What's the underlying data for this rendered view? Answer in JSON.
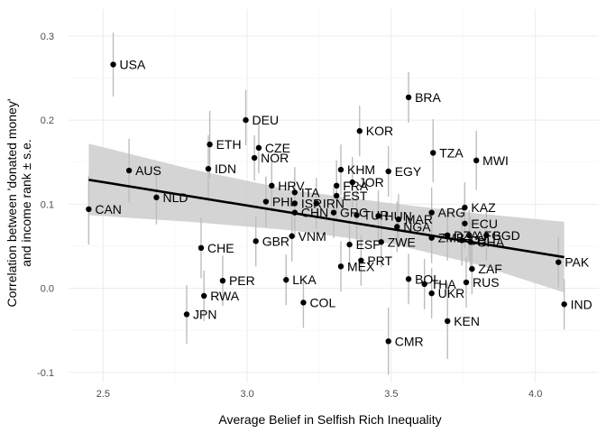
{
  "chart_data": {
    "type": "scatter",
    "title": "",
    "xlabel": "Average Belief in Selfish Rich Inequality",
    "ylabel_lines": [
      "Correlation between 'donated money'",
      "and income rank ± s.e."
    ],
    "xlim": [
      2.38,
      4.22
    ],
    "ylim": [
      -0.112,
      0.332
    ],
    "x_ticks": [
      2.5,
      3.0,
      3.5,
      4.0
    ],
    "x_tick_labels": [
      "2.5",
      "3.0",
      "3.5",
      "4.0"
    ],
    "y_ticks": [
      -0.1,
      0.0,
      0.1,
      0.2,
      0.3
    ],
    "y_tick_labels": [
      "-0.1",
      "0.0",
      "0.1",
      "0.2",
      "0.3"
    ],
    "grid": true,
    "point_color": "#000000",
    "errorbar_color": "#bdbdbd",
    "band_color": "#cccccc",
    "line_color": "#000000",
    "regression": {
      "x": [
        2.45,
        4.1
      ],
      "y": [
        0.129,
        0.037
      ]
    },
    "confidence_band": {
      "x": [
        2.45,
        2.8,
        3.15,
        3.5,
        3.8,
        4.1
      ],
      "upper": [
        0.172,
        0.142,
        0.117,
        0.101,
        0.089,
        0.079
      ],
      "lower": [
        0.087,
        0.079,
        0.069,
        0.053,
        0.028,
        -0.005
      ]
    },
    "points": [
      {
        "label": "USA",
        "x": 2.535,
        "y": 0.266,
        "lo": 0.228,
        "hi": 0.304
      },
      {
        "label": "BRA",
        "x": 3.56,
        "y": 0.227,
        "lo": 0.197,
        "hi": 0.257
      },
      {
        "label": "DEU",
        "x": 2.995,
        "y": 0.2,
        "lo": 0.17,
        "hi": 0.236
      },
      {
        "label": "KOR",
        "x": 3.39,
        "y": 0.187,
        "lo": 0.157,
        "hi": 0.217
      },
      {
        "label": "ETH",
        "x": 2.87,
        "y": 0.171,
        "lo": 0.131,
        "hi": 0.211
      },
      {
        "label": "CZE",
        "x": 3.04,
        "y": 0.167,
        "lo": 0.137,
        "hi": 0.197
      },
      {
        "label": "TZA",
        "x": 3.645,
        "y": 0.161,
        "lo": 0.126,
        "hi": 0.201
      },
      {
        "label": "NOR",
        "x": 3.025,
        "y": 0.155,
        "lo": 0.128,
        "hi": 0.182
      },
      {
        "label": "MWI",
        "x": 3.795,
        "y": 0.152,
        "lo": 0.117,
        "hi": 0.187
      },
      {
        "label": "IDN",
        "x": 2.865,
        "y": 0.142,
        "lo": 0.102,
        "hi": 0.182
      },
      {
        "label": "AUS",
        "x": 2.59,
        "y": 0.14,
        "lo": 0.102,
        "hi": 0.178
      },
      {
        "label": "KHM",
        "x": 3.325,
        "y": 0.141,
        "lo": 0.111,
        "hi": 0.171
      },
      {
        "label": "EGY",
        "x": 3.49,
        "y": 0.139,
        "lo": 0.109,
        "hi": 0.169
      },
      {
        "label": "JOR",
        "x": 3.365,
        "y": 0.126,
        "lo": 0.096,
        "hi": 0.156
      },
      {
        "label": "FRA",
        "x": 3.31,
        "y": 0.122,
        "lo": 0.092,
        "hi": 0.152
      },
      {
        "label": "HRV",
        "x": 3.085,
        "y": 0.122,
        "lo": 0.092,
        "hi": 0.152
      },
      {
        "label": "ITA",
        "x": 3.165,
        "y": 0.114,
        "lo": 0.084,
        "hi": 0.144
      },
      {
        "label": "EST",
        "x": 3.31,
        "y": 0.11,
        "lo": 0.08,
        "hi": 0.14
      },
      {
        "label": "NLD",
        "x": 2.685,
        "y": 0.108,
        "lo": 0.076,
        "hi": 0.14
      },
      {
        "label": "PHL",
        "x": 3.065,
        "y": 0.103,
        "lo": 0.073,
        "hi": 0.133
      },
      {
        "label": "ISR",
        "x": 3.165,
        "y": 0.101,
        "lo": 0.071,
        "hi": 0.131
      },
      {
        "label": "IRN",
        "x": 3.24,
        "y": 0.101,
        "lo": 0.071,
        "hi": 0.131
      },
      {
        "label": "KAZ",
        "x": 3.755,
        "y": 0.096,
        "lo": 0.066,
        "hi": 0.126
      },
      {
        "label": "CAN",
        "x": 2.45,
        "y": 0.094,
        "lo": 0.052,
        "hi": 0.134
      },
      {
        "label": "ARG",
        "x": 3.64,
        "y": 0.09,
        "lo": 0.06,
        "hi": 0.12
      },
      {
        "label": "GRC",
        "x": 3.3,
        "y": 0.09,
        "lo": 0.06,
        "hi": 0.12
      },
      {
        "label": "CHN",
        "x": 3.165,
        "y": 0.09,
        "lo": 0.06,
        "hi": 0.12
      },
      {
        "label": "TUR",
        "x": 3.38,
        "y": 0.087,
        "lo": 0.057,
        "hi": 0.117
      },
      {
        "label": "HUN",
        "x": 3.455,
        "y": 0.086,
        "lo": 0.056,
        "hi": 0.116
      },
      {
        "label": "MAR",
        "x": 3.525,
        "y": 0.082,
        "lo": 0.052,
        "hi": 0.112
      },
      {
        "label": "ECU",
        "x": 3.755,
        "y": 0.077,
        "lo": 0.047,
        "hi": 0.107
      },
      {
        "label": "NGA",
        "x": 3.52,
        "y": 0.073,
        "lo": 0.043,
        "hi": 0.103
      },
      {
        "label": "DZA",
        "x": 3.695,
        "y": 0.063,
        "lo": 0.033,
        "hi": 0.093
      },
      {
        "label": "AFG",
        "x": 3.77,
        "y": 0.063,
        "lo": 0.033,
        "hi": 0.093
      },
      {
        "label": "BGD",
        "x": 3.83,
        "y": 0.063,
        "lo": 0.033,
        "hi": 0.093
      },
      {
        "label": "VNM",
        "x": 3.155,
        "y": 0.062,
        "lo": 0.032,
        "hi": 0.092
      },
      {
        "label": "ZMB",
        "x": 3.64,
        "y": 0.06,
        "lo": 0.03,
        "hi": 0.09
      },
      {
        "label": "CHL",
        "x": 3.745,
        "y": 0.057,
        "lo": 0.027,
        "hi": 0.087
      },
      {
        "label": "GHA",
        "x": 3.775,
        "y": 0.055,
        "lo": 0.025,
        "hi": 0.085
      },
      {
        "label": "GBR",
        "x": 3.03,
        "y": 0.056,
        "lo": 0.026,
        "hi": 0.086
      },
      {
        "label": "ZWE",
        "x": 3.465,
        "y": 0.055,
        "lo": 0.025,
        "hi": 0.085
      },
      {
        "label": "ESP",
        "x": 3.355,
        "y": 0.052,
        "lo": 0.022,
        "hi": 0.082
      },
      {
        "label": "CHE",
        "x": 2.84,
        "y": 0.048,
        "lo": 0.012,
        "hi": 0.084
      },
      {
        "label": "PRT",
        "x": 3.395,
        "y": 0.033,
        "lo": 0.003,
        "hi": 0.063
      },
      {
        "label": "PAK",
        "x": 4.08,
        "y": 0.031,
        "lo": 0.001,
        "hi": 0.061
      },
      {
        "label": "MEX",
        "x": 3.325,
        "y": 0.026,
        "lo": -0.004,
        "hi": 0.056
      },
      {
        "label": "ZAF",
        "x": 3.78,
        "y": 0.023,
        "lo": -0.007,
        "hi": 0.053
      },
      {
        "label": "BOL",
        "x": 3.56,
        "y": 0.011,
        "lo": -0.019,
        "hi": 0.041
      },
      {
        "label": "LKA",
        "x": 3.135,
        "y": 0.01,
        "lo": -0.02,
        "hi": 0.04
      },
      {
        "label": "PER",
        "x": 2.915,
        "y": 0.009,
        "lo": -0.021,
        "hi": 0.039
      },
      {
        "label": "RUS",
        "x": 3.76,
        "y": 0.007,
        "lo": -0.023,
        "hi": 0.037
      },
      {
        "label": "THA",
        "x": 3.615,
        "y": 0.005,
        "lo": -0.025,
        "hi": 0.035
      },
      {
        "label": "UKR",
        "x": 3.64,
        "y": -0.006,
        "lo": -0.036,
        "hi": 0.024
      },
      {
        "label": "RWA",
        "x": 2.85,
        "y": -0.009,
        "lo": -0.039,
        "hi": 0.021
      },
      {
        "label": "COL",
        "x": 3.195,
        "y": -0.017,
        "lo": -0.047,
        "hi": 0.013
      },
      {
        "label": "IND",
        "x": 4.1,
        "y": -0.019,
        "lo": -0.049,
        "hi": 0.011
      },
      {
        "label": "JPN",
        "x": 2.79,
        "y": -0.031,
        "lo": -0.066,
        "hi": 0.004
      },
      {
        "label": "KEN",
        "x": 3.695,
        "y": -0.039,
        "lo": -0.084,
        "hi": 0.006
      },
      {
        "label": "CMR",
        "x": 3.49,
        "y": -0.063,
        "lo": -0.103,
        "hi": -0.023
      }
    ]
  }
}
